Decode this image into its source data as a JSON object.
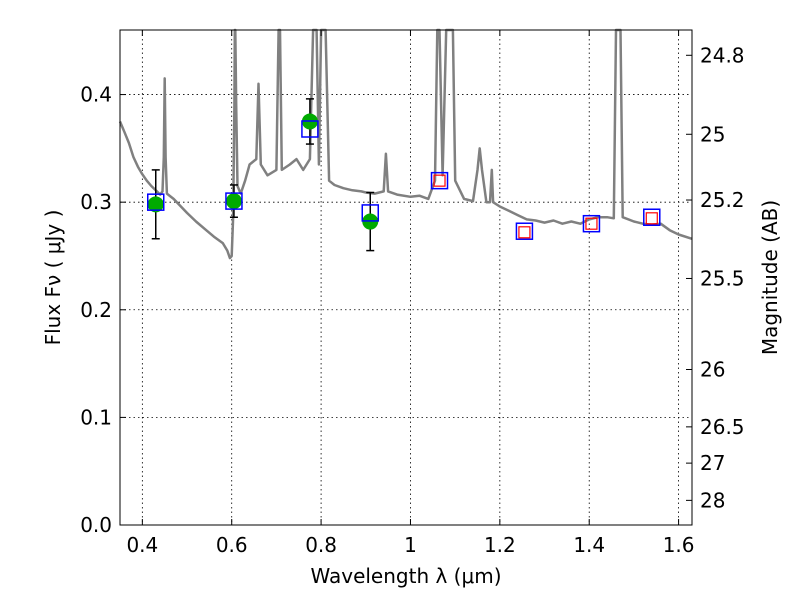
{
  "chart_data": {
    "type": "scatter",
    "title": "",
    "xlabel": "Wavelength  λ (μm)",
    "ylabel_left": "Flux  Fν  ( μJy )",
    "ylabel_right": "Magnitude (AB)",
    "xlim": [
      0.35,
      1.63
    ],
    "ylim": [
      0.0,
      0.46
    ],
    "grid": true,
    "legend": "none",
    "x_ticks": [
      "0.4",
      "0.6",
      "0.8",
      "1",
      "1.2",
      "1.4",
      "1.6"
    ],
    "x_tick_values": [
      0.4,
      0.6,
      0.8,
      1.0,
      1.2,
      1.4,
      1.6
    ],
    "y_ticks": [
      "0.0",
      "0.1",
      "0.2",
      "0.3",
      "0.4"
    ],
    "y_tick_values": [
      0.0,
      0.1,
      0.2,
      0.3,
      0.4
    ],
    "right_ticks": [
      {
        "label": "24.8",
        "flux": 0.4365
      },
      {
        "label": "25",
        "flux": 0.3631
      },
      {
        "label": "25.2",
        "flux": 0.302
      },
      {
        "label": "25.5",
        "flux": 0.2291
      },
      {
        "label": "26",
        "flux": 0.1445
      },
      {
        "label": "26.5",
        "flux": 0.0912
      },
      {
        "label": "27",
        "flux": 0.0575
      },
      {
        "label": "28",
        "flux": 0.0229
      }
    ],
    "colors": {
      "model": "#808080",
      "observed": "#00aa00",
      "model_photometry": "#0000ff",
      "predicted": "#ff0000",
      "errorbar": "#000000"
    },
    "series": [
      {
        "kind": "model_spectrum",
        "points": [
          [
            0.35,
            0.375
          ],
          [
            0.36,
            0.365
          ],
          [
            0.37,
            0.355
          ],
          [
            0.38,
            0.342
          ],
          [
            0.39,
            0.333
          ],
          [
            0.4,
            0.326
          ],
          [
            0.41,
            0.32
          ],
          [
            0.42,
            0.315
          ],
          [
            0.43,
            0.311
          ],
          [
            0.44,
            0.307
          ],
          [
            0.445,
            0.31
          ],
          [
            0.448,
            0.342
          ],
          [
            0.45,
            0.415
          ],
          [
            0.452,
            0.342
          ],
          [
            0.455,
            0.308
          ],
          [
            0.47,
            0.303
          ],
          [
            0.5,
            0.29
          ],
          [
            0.52,
            0.282
          ],
          [
            0.54,
            0.275
          ],
          [
            0.56,
            0.268
          ],
          [
            0.58,
            0.262
          ],
          [
            0.59,
            0.255
          ],
          [
            0.596,
            0.248
          ],
          [
            0.6,
            0.25
          ],
          [
            0.603,
            0.285
          ],
          [
            0.606,
            0.39
          ],
          [
            0.607,
            0.465
          ],
          [
            0.608,
            0.465
          ],
          [
            0.61,
            0.39
          ],
          [
            0.613,
            0.315
          ],
          [
            0.62,
            0.308
          ],
          [
            0.63,
            0.32
          ],
          [
            0.64,
            0.335
          ],
          [
            0.655,
            0.34
          ],
          [
            0.66,
            0.41
          ],
          [
            0.665,
            0.335
          ],
          [
            0.68,
            0.325
          ],
          [
            0.7,
            0.33
          ],
          [
            0.705,
            0.465
          ],
          [
            0.708,
            0.465
          ],
          [
            0.712,
            0.33
          ],
          [
            0.73,
            0.335
          ],
          [
            0.745,
            0.34
          ],
          [
            0.76,
            0.33
          ],
          [
            0.775,
            0.34
          ],
          [
            0.782,
            0.465
          ],
          [
            0.79,
            0.465
          ],
          [
            0.795,
            0.335
          ],
          [
            0.8,
            0.465
          ],
          [
            0.81,
            0.465
          ],
          [
            0.818,
            0.32
          ],
          [
            0.83,
            0.316
          ],
          [
            0.85,
            0.313
          ],
          [
            0.87,
            0.311
          ],
          [
            0.89,
            0.31
          ],
          [
            0.9,
            0.309
          ],
          [
            0.92,
            0.308
          ],
          [
            0.94,
            0.31
          ],
          [
            0.945,
            0.345
          ],
          [
            0.95,
            0.31
          ],
          [
            0.97,
            0.307
          ],
          [
            1.0,
            0.305
          ],
          [
            1.02,
            0.306
          ],
          [
            1.04,
            0.303
          ],
          [
            1.055,
            0.32
          ],
          [
            1.06,
            0.465
          ],
          [
            1.065,
            0.465
          ],
          [
            1.072,
            0.325
          ],
          [
            1.08,
            0.465
          ],
          [
            1.095,
            0.465
          ],
          [
            1.1,
            0.32
          ],
          [
            1.12,
            0.303
          ],
          [
            1.14,
            0.301
          ],
          [
            1.15,
            0.33
          ],
          [
            1.155,
            0.35
          ],
          [
            1.16,
            0.33
          ],
          [
            1.17,
            0.3
          ],
          [
            1.178,
            0.3
          ],
          [
            1.182,
            0.33
          ],
          [
            1.185,
            0.3
          ],
          [
            1.2,
            0.296
          ],
          [
            1.22,
            0.292
          ],
          [
            1.24,
            0.288
          ],
          [
            1.26,
            0.284
          ],
          [
            1.28,
            0.283
          ],
          [
            1.3,
            0.281
          ],
          [
            1.32,
            0.283
          ],
          [
            1.34,
            0.28
          ],
          [
            1.36,
            0.282
          ],
          [
            1.38,
            0.28
          ],
          [
            1.4,
            0.284
          ],
          [
            1.42,
            0.286
          ],
          [
            1.44,
            0.286
          ],
          [
            1.455,
            0.285
          ],
          [
            1.46,
            0.465
          ],
          [
            1.47,
            0.465
          ],
          [
            1.475,
            0.286
          ],
          [
            1.5,
            0.282
          ],
          [
            1.52,
            0.28
          ],
          [
            1.54,
            0.279
          ],
          [
            1.56,
            0.28
          ],
          [
            1.58,
            0.274
          ],
          [
            1.6,
            0.27
          ],
          [
            1.63,
            0.266
          ]
        ]
      },
      {
        "kind": "observed_flux",
        "points": [
          {
            "x": 0.43,
            "y": 0.298,
            "err": 0.032
          },
          {
            "x": 0.605,
            "y": 0.301,
            "err": 0.015
          },
          {
            "x": 0.775,
            "y": 0.375,
            "err": 0.021
          },
          {
            "x": 0.91,
            "y": 0.282,
            "err": 0.027
          }
        ]
      },
      {
        "kind": "model_photometry",
        "points": [
          {
            "x": 0.43,
            "y": 0.3
          },
          {
            "x": 0.605,
            "y": 0.301
          },
          {
            "x": 0.775,
            "y": 0.368
          },
          {
            "x": 0.91,
            "y": 0.29
          },
          {
            "x": 1.065,
            "y": 0.32
          },
          {
            "x": 1.255,
            "y": 0.273
          },
          {
            "x": 1.405,
            "y": 0.28
          },
          {
            "x": 1.54,
            "y": 0.286
          }
        ]
      },
      {
        "kind": "predicted_photometry",
        "points": [
          {
            "x": 1.065,
            "y": 0.32
          },
          {
            "x": 1.255,
            "y": 0.272
          },
          {
            "x": 1.405,
            "y": 0.28
          },
          {
            "x": 1.54,
            "y": 0.285
          }
        ]
      }
    ]
  }
}
